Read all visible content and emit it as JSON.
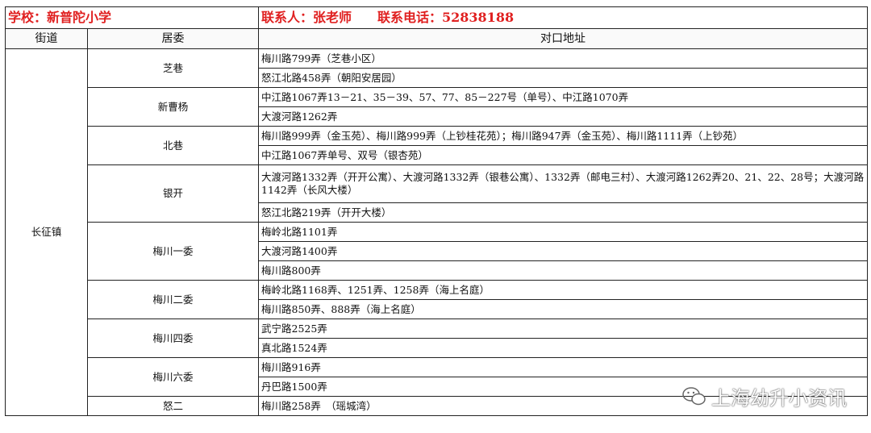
{
  "header": {
    "school": "学校：新普陀小学",
    "contact": "联系人：张老师　　联系电话：52838188"
  },
  "columns": [
    "街道",
    "居委",
    "对口地址"
  ],
  "street": "长征镇",
  "groups": [
    {
      "committee": "芝巷",
      "addresses": [
        "梅川路799弄（芝巷小区）",
        "怒江北路458弄（朝阳安居园）"
      ]
    },
    {
      "committee": "新曹杨",
      "addresses": [
        "中江路1067弄13－21、35－39、57、77、85－227号（单号）、中江路1070弄",
        "大渡河路1262弄"
      ]
    },
    {
      "committee": "北巷",
      "addresses": [
        "梅川路999弄（金玉苑）、梅川路999弄（上钞桂花苑）；梅川路947弄（金玉苑）、梅川路1111弄（上钞苑）",
        "中江路1067弄单号、双号（银杏苑）"
      ]
    },
    {
      "committee": "银开",
      "addresses": [
        "大渡河路1332弄（开开公寓）、大渡河路1332弄（银巷公寓）、1332弄（邮电三村）、大渡河路1262弄20、21、22、28号；大渡河路1142弄（长风大楼）",
        "怒江北路219弄（开开大楼）"
      ]
    },
    {
      "committee": "梅川一委",
      "addresses": [
        "梅岭北路1101弄",
        "大渡河路1400弄",
        "梅川路800弄"
      ]
    },
    {
      "committee": "梅川二委",
      "addresses": [
        "梅岭北路1168弄、1251弄、1258弄（海上名庭）",
        "梅川路850弄、888弄（海上名庭）"
      ]
    },
    {
      "committee": "梅川四委",
      "addresses": [
        "武宁路2525弄",
        "真北路1524弄"
      ]
    },
    {
      "committee": "梅川六委",
      "addresses": [
        "梅川路916弄",
        "丹巴路1500弄"
      ]
    },
    {
      "committee": "怒二",
      "addresses": [
        "梅川路258弄　（瑶城湾）"
      ]
    }
  ],
  "watermark": {
    "text": "上海幼升小资讯",
    "icon": "wechat-icon"
  },
  "colors": {
    "title": "#e02020"
  }
}
